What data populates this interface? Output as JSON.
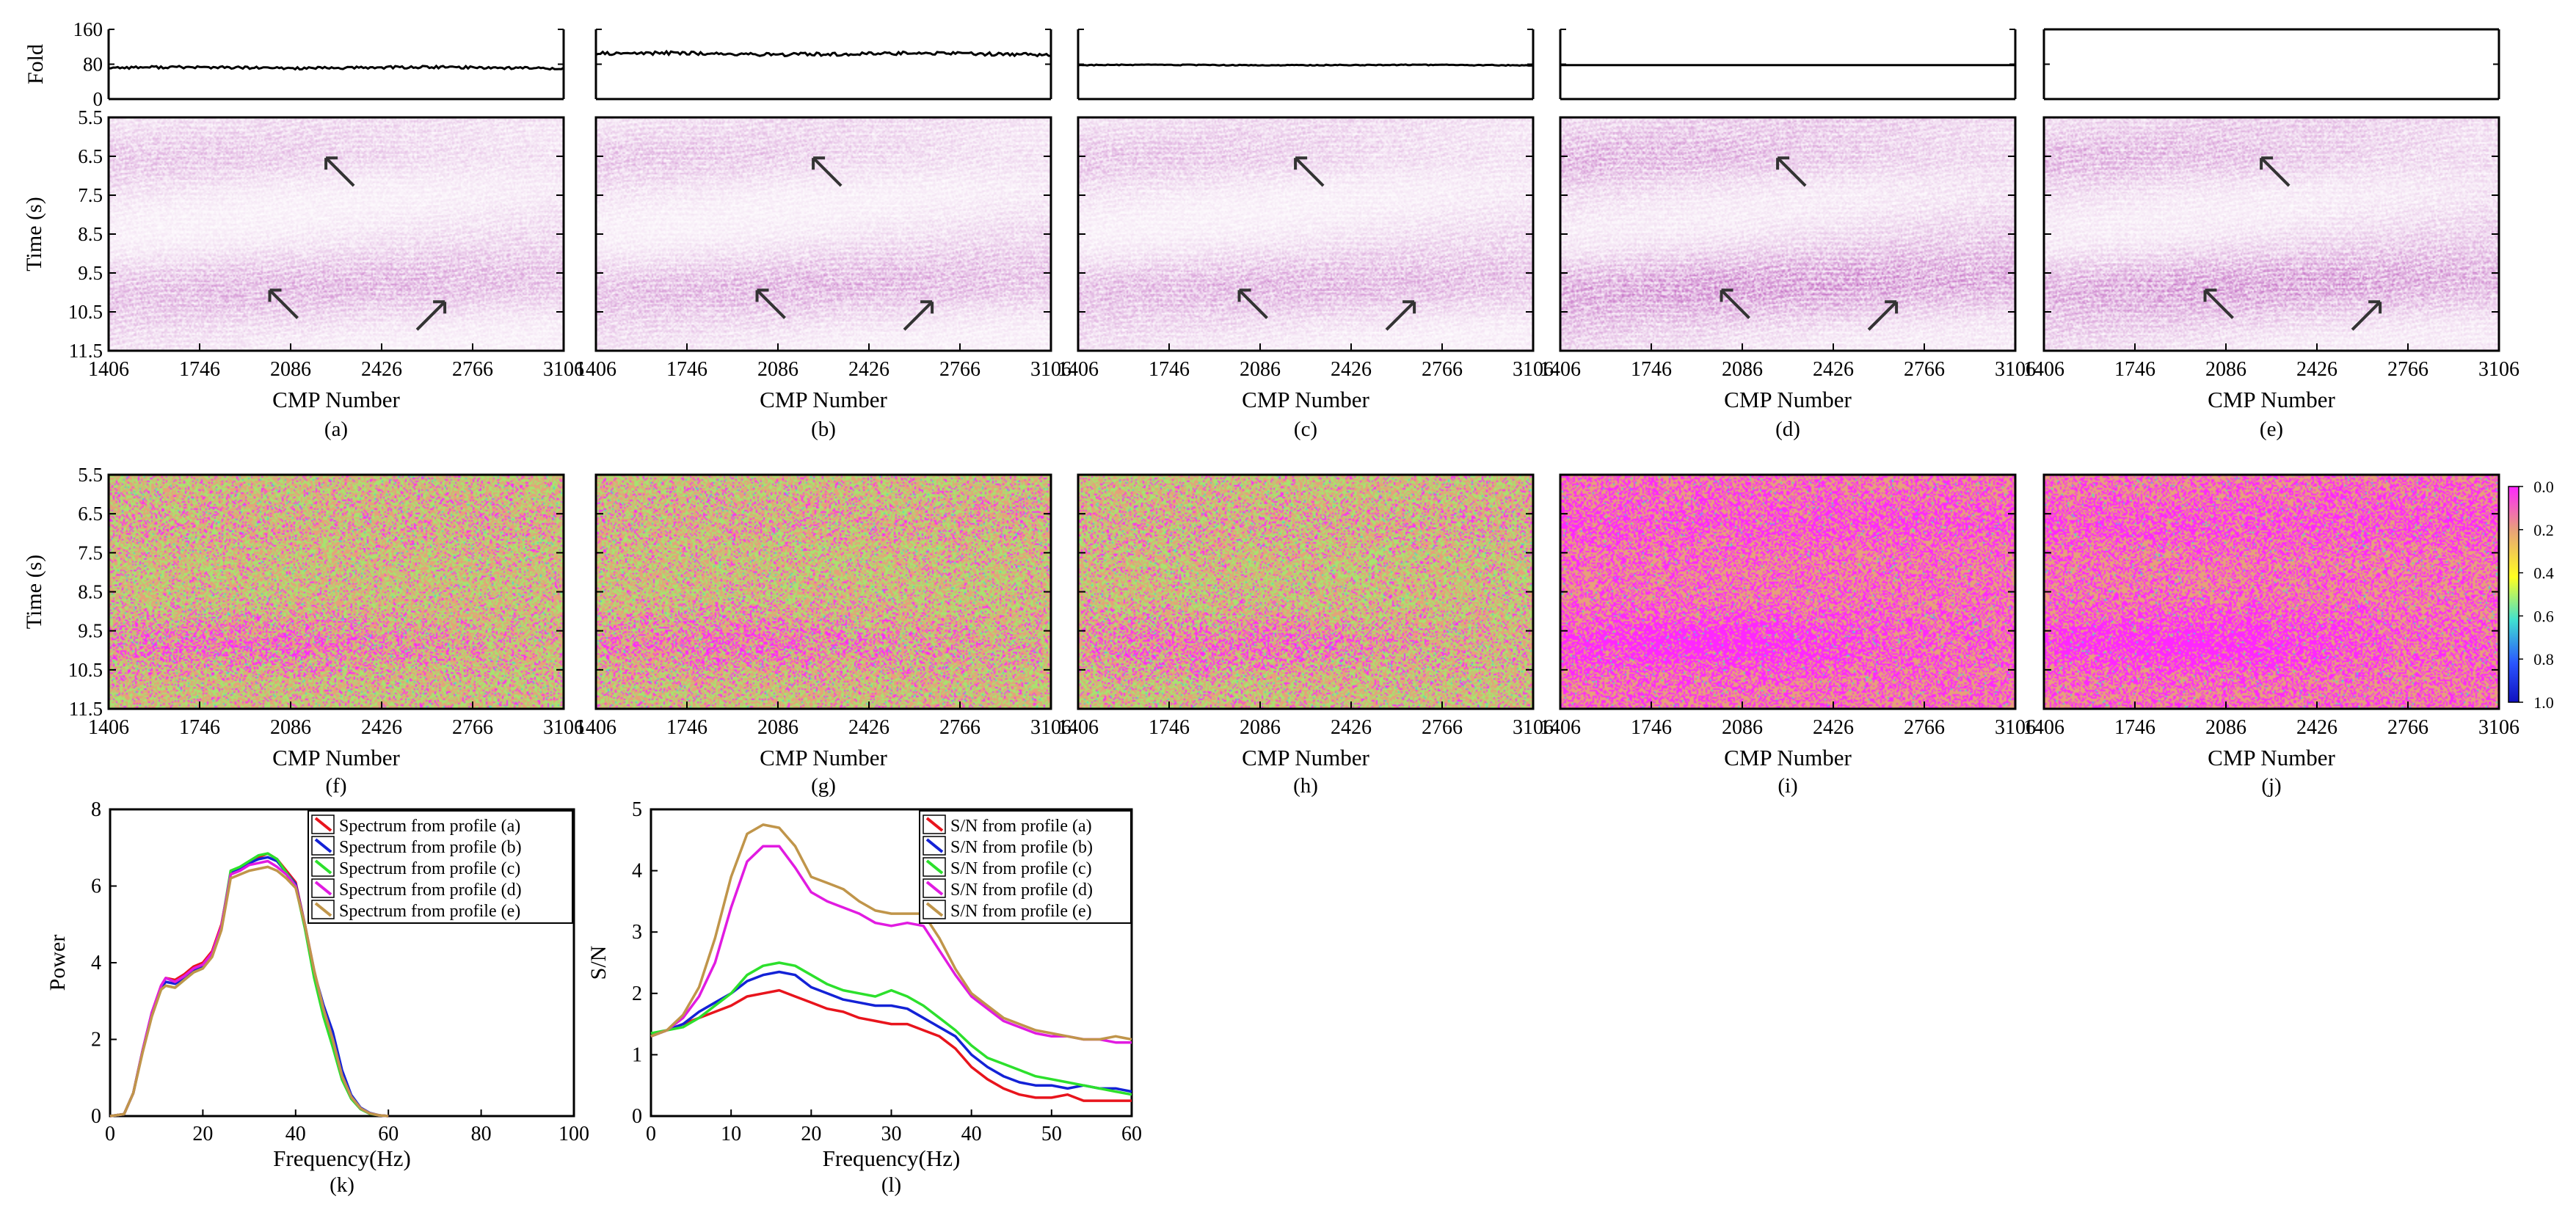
{
  "colors": {
    "seismic_tint": "#b03ab0",
    "abs_high": "#ff26ff",
    "abs_mid": "#e7a07a",
    "abs_low": "#a7e36f",
    "abs_cyan": "#40e0d0",
    "abs_blue": "#1010c0",
    "series_a": "#e8141c",
    "series_b": "#1322d6",
    "series_c": "#2ce02c",
    "series_d": "#e11be1",
    "series_e": "#c0954a"
  },
  "chart_data": [
    {
      "type": "line",
      "id": "fold",
      "ylabel": "Fold",
      "yticks": [
        "160",
        "80",
        "0"
      ],
      "ylim": [
        0,
        160
      ],
      "xlim": [
        1406,
        3106
      ],
      "series": [
        {
          "panel": "a",
          "level": 72,
          "jitter": 3
        },
        {
          "panel": "b",
          "level": 104,
          "jitter": 4
        },
        {
          "panel": "c",
          "level": 78,
          "jitter": 1
        },
        {
          "panel": "d",
          "level": 78,
          "jitter": 0
        },
        {
          "panel": "e",
          "level": 160,
          "jitter": 0
        }
      ]
    },
    {
      "type": "heatmap",
      "id": "stacked-profiles",
      "panels": [
        "(a)",
        "(b)",
        "(c)",
        "(d)",
        "(e)"
      ],
      "xlabel": "CMP Number",
      "xticks": [
        "1406",
        "1746",
        "2086",
        "2426",
        "2766",
        "3106"
      ],
      "ylabel": "Time (s)",
      "yticks": [
        "5.5",
        "6.5",
        "7.5",
        "8.5",
        "9.5",
        "10.5",
        "11.5"
      ],
      "ylim": [
        5.5,
        11.5
      ],
      "xlim": [
        1406,
        3106
      ],
      "arrows": [
        {
          "cmp": 2270,
          "time": 6.9,
          "dir": "up-left"
        },
        {
          "cmp": 2060,
          "time": 10.3,
          "dir": "up-left"
        },
        {
          "cmp": 2610,
          "time": 10.6,
          "dir": "up-right"
        }
      ]
    },
    {
      "type": "heatmap",
      "id": "absolute-difference",
      "panels": [
        "(f)",
        "(g)",
        "(h)",
        "(i)",
        "(j)"
      ],
      "xlabel": "CMP Number",
      "xticks": [
        "1406",
        "1746",
        "2086",
        "2426",
        "2766",
        "3106"
      ],
      "ylabel": "Time (s)",
      "yticks": [
        "5.5",
        "6.5",
        "7.5",
        "8.5",
        "9.5",
        "10.5",
        "11.5"
      ],
      "colorbar": {
        "ticks": [
          "0.0",
          "0.2",
          "0.4",
          "0.6",
          "0.8",
          "1.0"
        ],
        "range": [
          0,
          1
        ]
      }
    },
    {
      "type": "line",
      "id": "spectrum",
      "panel": "(k)",
      "xlabel": "Frequency(Hz)",
      "ylabel": "Power",
      "xlim": [
        0,
        100
      ],
      "ylim": [
        0,
        8
      ],
      "xticks": [
        "0",
        "20",
        "40",
        "60",
        "80",
        "100"
      ],
      "yticks": [
        "0",
        "2",
        "4",
        "6",
        "8"
      ],
      "legend_position": "top-right",
      "x": [
        0,
        3,
        5,
        7,
        9,
        11,
        12,
        14,
        16,
        18,
        20,
        22,
        24,
        26,
        28,
        30,
        32,
        34,
        36,
        38,
        40,
        42,
        44,
        46,
        48,
        50,
        52,
        54,
        56,
        58,
        60
      ],
      "series": [
        {
          "name": "Spectrum from profile (a)",
          "values": [
            0,
            0.05,
            0.6,
            1.7,
            2.7,
            3.4,
            3.6,
            3.55,
            3.7,
            3.9,
            4.0,
            4.3,
            5.0,
            6.3,
            6.45,
            6.6,
            6.75,
            6.85,
            6.7,
            6.4,
            6.1,
            5.0,
            3.7,
            2.7,
            1.9,
            1.0,
            0.5,
            0.2,
            0.07,
            0.02,
            0
          ]
        },
        {
          "name": "Spectrum from profile (b)",
          "values": [
            0,
            0.05,
            0.6,
            1.7,
            2.7,
            3.35,
            3.5,
            3.45,
            3.6,
            3.8,
            3.9,
            4.2,
            4.9,
            6.35,
            6.45,
            6.6,
            6.7,
            6.75,
            6.65,
            6.35,
            6.05,
            5.0,
            3.75,
            2.9,
            2.2,
            1.2,
            0.55,
            0.22,
            0.08,
            0.02,
            0
          ]
        },
        {
          "name": "Spectrum from profile (c)",
          "values": [
            0,
            0.05,
            0.6,
            1.7,
            2.65,
            3.3,
            3.4,
            3.35,
            3.55,
            3.75,
            3.85,
            4.2,
            4.95,
            6.4,
            6.5,
            6.65,
            6.8,
            6.85,
            6.7,
            6.35,
            6.0,
            4.9,
            3.6,
            2.6,
            1.8,
            0.95,
            0.45,
            0.18,
            0.06,
            0.02,
            0
          ]
        },
        {
          "name": "Spectrum from profile (d)",
          "values": [
            0,
            0.05,
            0.6,
            1.7,
            2.7,
            3.4,
            3.6,
            3.5,
            3.65,
            3.85,
            3.95,
            4.25,
            4.95,
            6.3,
            6.4,
            6.55,
            6.6,
            6.65,
            6.5,
            6.3,
            6.0,
            5.0,
            3.8,
            2.8,
            2.0,
            1.05,
            0.5,
            0.2,
            0.07,
            0.02,
            0
          ]
        },
        {
          "name": "Spectrum from profile (e)",
          "values": [
            0,
            0.05,
            0.6,
            1.65,
            2.6,
            3.3,
            3.4,
            3.35,
            3.55,
            3.75,
            3.85,
            4.15,
            4.85,
            6.2,
            6.3,
            6.4,
            6.45,
            6.5,
            6.4,
            6.2,
            5.95,
            5.0,
            3.8,
            2.8,
            2.0,
            1.05,
            0.5,
            0.2,
            0.07,
            0.02,
            0
          ]
        }
      ]
    },
    {
      "type": "line",
      "id": "snr",
      "panel": "(l)",
      "xlabel": "Frequency(Hz)",
      "ylabel": "S/N",
      "xlim": [
        0,
        60
      ],
      "ylim": [
        0,
        5
      ],
      "xticks": [
        "0",
        "10",
        "20",
        "30",
        "40",
        "50",
        "60"
      ],
      "yticks": [
        "0",
        "1",
        "2",
        "3",
        "4",
        "5"
      ],
      "legend_position": "top-right",
      "x": [
        0,
        2,
        4,
        6,
        8,
        10,
        12,
        14,
        16,
        18,
        20,
        22,
        24,
        26,
        28,
        30,
        32,
        34,
        36,
        38,
        40,
        42,
        44,
        46,
        48,
        50,
        52,
        54,
        56,
        58,
        60
      ],
      "series": [
        {
          "name": "S/N from profile (a)",
          "values": [
            1.3,
            1.4,
            1.5,
            1.6,
            1.7,
            1.8,
            1.95,
            2.0,
            2.05,
            1.95,
            1.85,
            1.75,
            1.7,
            1.6,
            1.55,
            1.5,
            1.5,
            1.4,
            1.3,
            1.1,
            0.8,
            0.6,
            0.45,
            0.35,
            0.3,
            0.3,
            0.35,
            0.25,
            0.25,
            0.25,
            0.25
          ]
        },
        {
          "name": "S/N from profile (b)",
          "values": [
            1.3,
            1.4,
            1.5,
            1.7,
            1.85,
            2.0,
            2.2,
            2.3,
            2.35,
            2.3,
            2.1,
            2.0,
            1.9,
            1.85,
            1.8,
            1.8,
            1.75,
            1.6,
            1.45,
            1.3,
            1.0,
            0.8,
            0.65,
            0.55,
            0.5,
            0.5,
            0.45,
            0.5,
            0.45,
            0.45,
            0.4
          ]
        },
        {
          "name": "S/N from profile (c)",
          "values": [
            1.35,
            1.4,
            1.45,
            1.6,
            1.8,
            2.0,
            2.3,
            2.45,
            2.5,
            2.45,
            2.3,
            2.15,
            2.05,
            2.0,
            1.95,
            2.05,
            1.95,
            1.8,
            1.6,
            1.4,
            1.15,
            0.95,
            0.85,
            0.75,
            0.65,
            0.6,
            0.55,
            0.5,
            0.45,
            0.4,
            0.35
          ]
        },
        {
          "name": "S/N from profile (d)",
          "values": [
            1.3,
            1.4,
            1.6,
            1.95,
            2.5,
            3.4,
            4.15,
            4.4,
            4.4,
            4.05,
            3.65,
            3.5,
            3.4,
            3.3,
            3.15,
            3.1,
            3.15,
            3.1,
            2.7,
            2.3,
            1.95,
            1.75,
            1.55,
            1.45,
            1.35,
            1.3,
            1.3,
            1.25,
            1.25,
            1.2,
            1.2
          ]
        },
        {
          "name": "S/N from profile (e)",
          "values": [
            1.3,
            1.4,
            1.65,
            2.1,
            2.9,
            3.9,
            4.6,
            4.75,
            4.7,
            4.4,
            3.9,
            3.8,
            3.7,
            3.5,
            3.35,
            3.3,
            3.3,
            3.3,
            2.9,
            2.4,
            2.0,
            1.8,
            1.6,
            1.5,
            1.4,
            1.35,
            1.3,
            1.25,
            1.25,
            1.3,
            1.25
          ]
        }
      ]
    }
  ]
}
